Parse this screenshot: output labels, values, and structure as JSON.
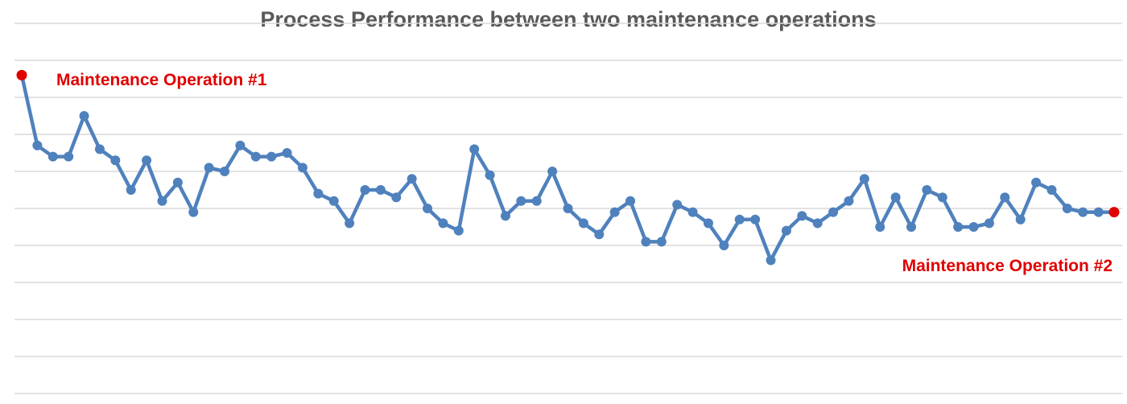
{
  "chart_data": {
    "type": "line",
    "title": "Process Performance between two maintenance operations",
    "xlabel": "",
    "ylabel": "",
    "ylim": [
      0,
      10
    ],
    "grid": true,
    "legend": "none",
    "series": [
      {
        "color": "#4f81bd",
        "x": [
          1,
          2,
          3,
          4,
          5,
          6,
          7,
          8,
          9,
          10,
          11,
          12,
          13,
          14,
          15,
          16,
          17,
          18,
          19,
          20,
          21,
          22,
          23,
          24,
          25,
          26,
          27,
          28,
          29,
          30,
          31,
          32,
          33,
          34,
          35,
          36,
          37,
          38,
          39,
          40,
          41,
          42,
          43,
          44,
          45,
          46,
          47,
          48,
          49,
          50,
          51,
          52,
          53,
          54,
          55,
          56,
          57,
          58,
          59,
          60,
          61,
          62,
          63,
          64,
          65,
          66,
          67,
          68,
          69,
          70,
          71
        ],
        "values": [
          8.6,
          6.7,
          6.4,
          6.4,
          7.5,
          6.6,
          6.3,
          5.5,
          6.3,
          5.2,
          5.7,
          4.9,
          6.1,
          6.0,
          6.7,
          6.4,
          6.4,
          6.5,
          6.1,
          5.4,
          5.2,
          4.6,
          5.5,
          5.5,
          5.3,
          5.8,
          5.0,
          4.6,
          4.4,
          6.6,
          5.9,
          4.8,
          5.2,
          5.2,
          6.0,
          5.0,
          4.6,
          4.3,
          4.9,
          5.2,
          4.1,
          4.1,
          5.1,
          4.9,
          4.6,
          4.0,
          4.7,
          4.7,
          3.6,
          4.4,
          4.8,
          4.6,
          4.9,
          5.2,
          5.8,
          4.5,
          5.3,
          4.5,
          5.5,
          5.3,
          4.5,
          4.5,
          4.6,
          5.3,
          4.7,
          5.7,
          5.5,
          5.0,
          4.9,
          4.9,
          4.9
        ]
      }
    ],
    "annotations": [
      {
        "text": "Maintenance Operation #1",
        "color": "#e00000",
        "x": 1
      },
      {
        "text": "Maintenance Operation #2",
        "color": "#e00000",
        "x": 71
      }
    ]
  }
}
